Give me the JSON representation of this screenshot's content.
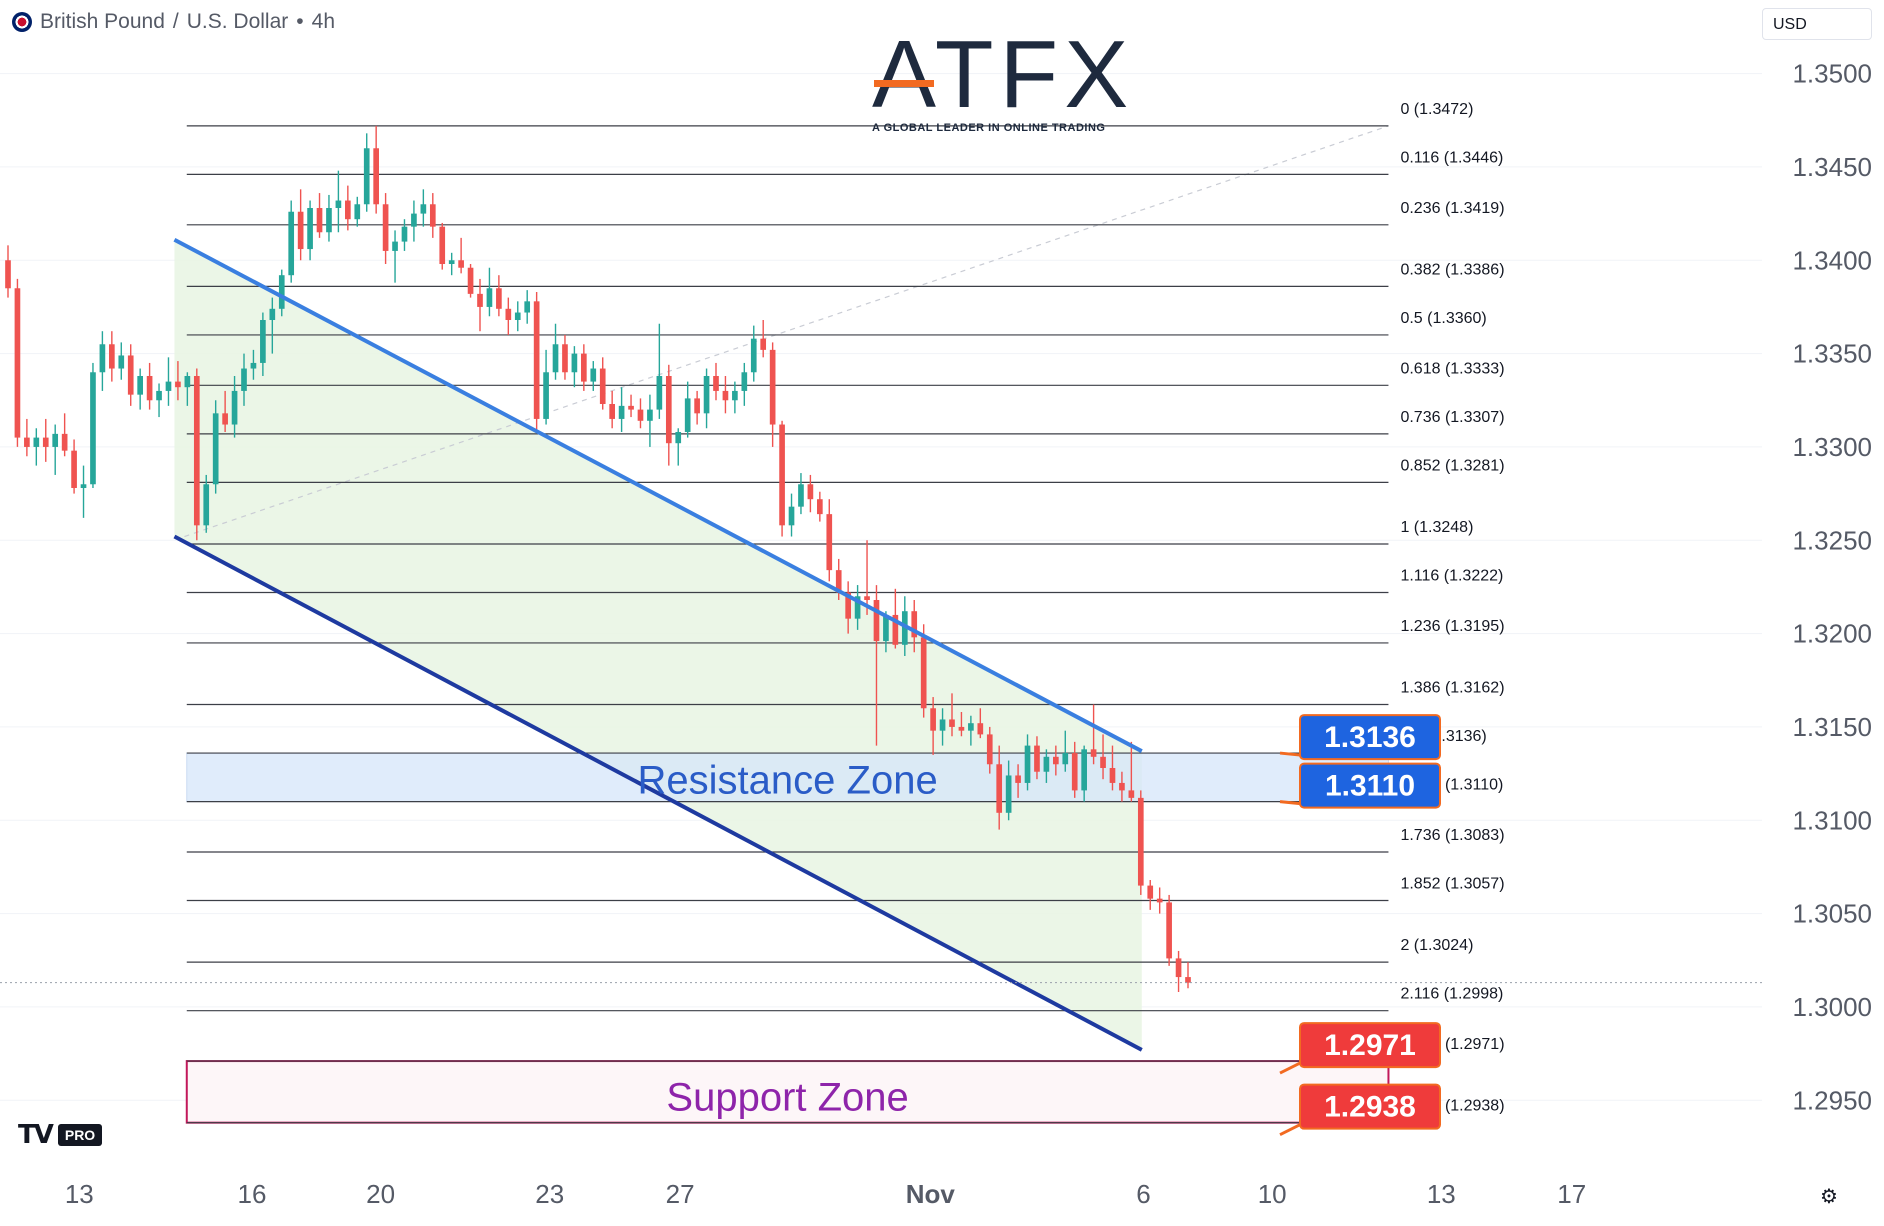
{
  "header": {
    "symbol": "British Pound",
    "quote": "U.S. Dollar",
    "interval": "4h",
    "currency_selector": "USD"
  },
  "logo": {
    "brand": "ATFX",
    "tagline": "A GLOBAL LEADER IN ONLINE TRADING"
  },
  "footer": {
    "brand": "TV",
    "pro_badge": "PRO"
  },
  "colors": {
    "bull": "#26a69a",
    "bear": "#ef5350",
    "channel_upper": "#3a7fe0",
    "channel_lower": "#1e3aa0",
    "channel_fill": "#e8f5e3",
    "resistance": "#d6e6fa",
    "support_border": "#c2185b",
    "blue_label": "#1e64e0",
    "red_label": "#ef3b3b"
  },
  "chart_data": {
    "type": "candlestick",
    "y_axis": {
      "range": [
        1.2918,
        1.3518
      ],
      "ticks": [
        "1.3500",
        "1.3450",
        "1.3400",
        "1.3350",
        "1.3300",
        "1.3250",
        "1.3200",
        "1.3150",
        "1.3100",
        "1.3050",
        "1.3000",
        "1.2950"
      ]
    },
    "x_axis": {
      "range": [
        0,
        100
      ],
      "ticks": [
        {
          "label": "13",
          "x": 4.5
        },
        {
          "label": "16",
          "x": 14.3
        },
        {
          "label": "20",
          "x": 21.6
        },
        {
          "label": "23",
          "x": 31.2
        },
        {
          "label": "27",
          "x": 38.6
        },
        {
          "label": "Nov",
          "x": 52.8
        },
        {
          "label": "6",
          "x": 64.9
        },
        {
          "label": "10",
          "x": 72.2
        },
        {
          "label": "13",
          "x": 81.8
        },
        {
          "label": "17",
          "x": 89.2
        }
      ]
    },
    "fibonacci": [
      {
        "label": "0 (1.3472)",
        "value": 1.3472
      },
      {
        "label": "0.116 (1.3446)",
        "value": 1.3446
      },
      {
        "label": "0.236 (1.3419)",
        "value": 1.3419
      },
      {
        "label": "0.382 (1.3386)",
        "value": 1.3386
      },
      {
        "label": "0.5 (1.3360)",
        "value": 1.336
      },
      {
        "label": "0.618 (1.3333)",
        "value": 1.3333
      },
      {
        "label": "0.736 (1.3307)",
        "value": 1.3307
      },
      {
        "label": "0.852 (1.3281)",
        "value": 1.3281
      },
      {
        "label": "1 (1.3248)",
        "value": 1.3248
      },
      {
        "label": "1.116 (1.3222)",
        "value": 1.3222
      },
      {
        "label": "1.236 (1.3195)",
        "value": 1.3195
      },
      {
        "label": "1.386 (1.3162)",
        "value": 1.3162
      },
      {
        "label": "1.5 (1.3136)",
        "value": 1.3136
      },
      {
        "label": "1.618 (1.3110)",
        "value": 1.311
      },
      {
        "label": "1.736 (1.3083)",
        "value": 1.3083
      },
      {
        "label": "1.852 (1.3057)",
        "value": 1.3057
      },
      {
        "label": "2 (1.3024)",
        "value": 1.3024
      },
      {
        "label": "2.116 (1.2998)",
        "value": 1.2998
      },
      {
        "label": "2.236 (1.2971)",
        "value": 1.2971
      },
      {
        "label": "2.386 (1.2938)",
        "value": 1.2938
      }
    ],
    "fib_x_range": [
      10.6,
      78.8
    ],
    "zones": [
      {
        "name": "Resistance Zone",
        "top": 1.3136,
        "bottom": 1.311,
        "x_range": [
          10.6,
          78.8
        ]
      },
      {
        "name": "Support Zone",
        "top": 1.2971,
        "bottom": 1.2938,
        "x_range": [
          10.6,
          78.8
        ]
      }
    ],
    "channel": {
      "upper": [
        [
          9.9,
          1.3411
        ],
        [
          64.8,
          1.3137
        ]
      ],
      "lower": [
        [
          9.9,
          1.3252
        ],
        [
          64.8,
          1.2977
        ]
      ]
    },
    "price_labels": [
      {
        "text": "1.3136",
        "value": 1.3136,
        "kind": "blue"
      },
      {
        "text": "1.3110",
        "value": 1.311,
        "kind": "blue"
      },
      {
        "text": "1.2971",
        "value": 1.2971,
        "kind": "red"
      },
      {
        "text": "1.2938",
        "value": 1.2938,
        "kind": "red"
      }
    ],
    "last_price": 1.3013,
    "candles": [
      [
        1.34,
        1.3408,
        1.338,
        1.3385
      ],
      [
        1.3385,
        1.339,
        1.33,
        1.3305
      ],
      [
        1.3305,
        1.3315,
        1.3295,
        1.33
      ],
      [
        1.33,
        1.331,
        1.329,
        1.3305
      ],
      [
        1.3305,
        1.3315,
        1.3292,
        1.33
      ],
      [
        1.33,
        1.3312,
        1.3285,
        1.3307
      ],
      [
        1.3307,
        1.3318,
        1.3295,
        1.3298
      ],
      [
        1.3298,
        1.3304,
        1.3275,
        1.3278
      ],
      [
        1.3278,
        1.329,
        1.3262,
        1.328
      ],
      [
        1.328,
        1.3345,
        1.3278,
        1.334
      ],
      [
        1.334,
        1.3362,
        1.333,
        1.3355
      ],
      [
        1.3355,
        1.3362,
        1.3335,
        1.3342
      ],
      [
        1.3342,
        1.3356,
        1.3336,
        1.3349
      ],
      [
        1.3349,
        1.3355,
        1.3322,
        1.3328
      ],
      [
        1.3328,
        1.3342,
        1.332,
        1.3338
      ],
      [
        1.3338,
        1.3345,
        1.332,
        1.3325
      ],
      [
        1.3325,
        1.3334,
        1.3316,
        1.333
      ],
      [
        1.333,
        1.3348,
        1.3322,
        1.3335
      ],
      [
        1.3335,
        1.3346,
        1.3325,
        1.3332
      ],
      [
        1.3332,
        1.334,
        1.3322,
        1.3338
      ],
      [
        1.3338,
        1.3342,
        1.325,
        1.3258
      ],
      [
        1.3258,
        1.3285,
        1.3254,
        1.328
      ],
      [
        1.328,
        1.3325,
        1.3275,
        1.3318
      ],
      [
        1.3318,
        1.333,
        1.3308,
        1.3312
      ],
      [
        1.3312,
        1.3338,
        1.3305,
        1.333
      ],
      [
        1.333,
        1.335,
        1.3322,
        1.3342
      ],
      [
        1.3342,
        1.3352,
        1.3336,
        1.3345
      ],
      [
        1.3345,
        1.3372,
        1.3338,
        1.3368
      ],
      [
        1.3368,
        1.338,
        1.335,
        1.3374
      ],
      [
        1.3374,
        1.3395,
        1.337,
        1.3392
      ],
      [
        1.3392,
        1.3432,
        1.3388,
        1.3426
      ],
      [
        1.3426,
        1.3438,
        1.34,
        1.3406
      ],
      [
        1.3406,
        1.3432,
        1.34,
        1.3428
      ],
      [
        1.3428,
        1.3436,
        1.3412,
        1.3415
      ],
      [
        1.3415,
        1.3435,
        1.341,
        1.3428
      ],
      [
        1.3428,
        1.3448,
        1.3415,
        1.3432
      ],
      [
        1.3432,
        1.344,
        1.3416,
        1.3422
      ],
      [
        1.3422,
        1.3434,
        1.3418,
        1.343
      ],
      [
        1.343,
        1.3468,
        1.3426,
        1.346
      ],
      [
        1.346,
        1.3472,
        1.3425,
        1.343
      ],
      [
        1.343,
        1.3436,
        1.3398,
        1.3405
      ],
      [
        1.3405,
        1.3416,
        1.3388,
        1.341
      ],
      [
        1.341,
        1.3422,
        1.3405,
        1.3418
      ],
      [
        1.3418,
        1.3432,
        1.341,
        1.3425
      ],
      [
        1.3425,
        1.3438,
        1.3418,
        1.343
      ],
      [
        1.343,
        1.3436,
        1.3412,
        1.3418
      ],
      [
        1.3418,
        1.342,
        1.3395,
        1.3398
      ],
      [
        1.3398,
        1.3404,
        1.3392,
        1.34
      ],
      [
        1.34,
        1.3412,
        1.3393,
        1.3396
      ],
      [
        1.3396,
        1.3398,
        1.338,
        1.3382
      ],
      [
        1.3382,
        1.339,
        1.3362,
        1.3375
      ],
      [
        1.3375,
        1.3396,
        1.337,
        1.3385
      ],
      [
        1.3385,
        1.3392,
        1.337,
        1.3374
      ],
      [
        1.3374,
        1.338,
        1.336,
        1.3368
      ],
      [
        1.3368,
        1.3378,
        1.3362,
        1.3372
      ],
      [
        1.3372,
        1.3384,
        1.3366,
        1.3378
      ],
      [
        1.3378,
        1.3383,
        1.3308,
        1.3315
      ],
      [
        1.3315,
        1.3352,
        1.3312,
        1.334
      ],
      [
        1.334,
        1.3366,
        1.3336,
        1.3355
      ],
      [
        1.3355,
        1.336,
        1.3336,
        1.334
      ],
      [
        1.334,
        1.3354,
        1.3332,
        1.335
      ],
      [
        1.335,
        1.3355,
        1.333,
        1.3335
      ],
      [
        1.3335,
        1.3346,
        1.333,
        1.3342
      ],
      [
        1.3342,
        1.3348,
        1.332,
        1.3323
      ],
      [
        1.3323,
        1.333,
        1.331,
        1.3315
      ],
      [
        1.3315,
        1.3332,
        1.3308,
        1.3322
      ],
      [
        1.3322,
        1.3328,
        1.3316,
        1.332
      ],
      [
        1.332,
        1.3326,
        1.331,
        1.3314
      ],
      [
        1.3314,
        1.3328,
        1.33,
        1.332
      ],
      [
        1.332,
        1.3366,
        1.3315,
        1.3338
      ],
      [
        1.3338,
        1.3344,
        1.329,
        1.3302
      ],
      [
        1.3302,
        1.331,
        1.329,
        1.3308
      ],
      [
        1.3308,
        1.3335,
        1.3305,
        1.3326
      ],
      [
        1.3326,
        1.333,
        1.3312,
        1.3318
      ],
      [
        1.3318,
        1.3342,
        1.331,
        1.3338
      ],
      [
        1.3338,
        1.3345,
        1.3325,
        1.333
      ],
      [
        1.333,
        1.3338,
        1.3318,
        1.3325
      ],
      [
        1.3325,
        1.3335,
        1.3318,
        1.333
      ],
      [
        1.333,
        1.3345,
        1.3322,
        1.334
      ],
      [
        1.334,
        1.3365,
        1.3335,
        1.3358
      ],
      [
        1.3358,
        1.3368,
        1.3348,
        1.3352
      ],
      [
        1.3352,
        1.3356,
        1.33,
        1.3312
      ],
      [
        1.3312,
        1.3314,
        1.3252,
        1.3258
      ],
      [
        1.3258,
        1.3275,
        1.3252,
        1.3268
      ],
      [
        1.3268,
        1.3286,
        1.3264,
        1.328
      ],
      [
        1.328,
        1.3285,
        1.3265,
        1.3272
      ],
      [
        1.3272,
        1.3276,
        1.326,
        1.3264
      ],
      [
        1.3264,
        1.3272,
        1.3228,
        1.3234
      ],
      [
        1.3234,
        1.324,
        1.3218,
        1.3222
      ],
      [
        1.3222,
        1.3228,
        1.32,
        1.3208
      ],
      [
        1.3208,
        1.3226,
        1.3202,
        1.322
      ],
      [
        1.322,
        1.325,
        1.321,
        1.3218
      ],
      [
        1.3218,
        1.3226,
        1.314,
        1.3196
      ],
      [
        1.3196,
        1.3212,
        1.319,
        1.321
      ],
      [
        1.321,
        1.3224,
        1.3192,
        1.3194
      ],
      [
        1.3194,
        1.322,
        1.3188,
        1.3212
      ],
      [
        1.3212,
        1.3218,
        1.319,
        1.3198
      ],
      [
        1.3198,
        1.3205,
        1.3155,
        1.316
      ],
      [
        1.316,
        1.3166,
        1.3135,
        1.3148
      ],
      [
        1.3148,
        1.316,
        1.314,
        1.3154
      ],
      [
        1.3154,
        1.3168,
        1.3145,
        1.315
      ],
      [
        1.315,
        1.3158,
        1.3145,
        1.3148
      ],
      [
        1.3148,
        1.3156,
        1.314,
        1.3152
      ],
      [
        1.3152,
        1.316,
        1.3144,
        1.3146
      ],
      [
        1.3146,
        1.315,
        1.3125,
        1.313
      ],
      [
        1.313,
        1.314,
        1.3095,
        1.3104
      ],
      [
        1.3104,
        1.3132,
        1.31,
        1.3124
      ],
      [
        1.3124,
        1.313,
        1.3112,
        1.312
      ],
      [
        1.312,
        1.3146,
        1.3116,
        1.314
      ],
      [
        1.314,
        1.3145,
        1.3122,
        1.3126
      ],
      [
        1.3126,
        1.3138,
        1.312,
        1.3134
      ],
      [
        1.3134,
        1.314,
        1.3124,
        1.313
      ],
      [
        1.313,
        1.3148,
        1.3126,
        1.3136
      ],
      [
        1.3136,
        1.3142,
        1.3112,
        1.3116
      ],
      [
        1.3116,
        1.314,
        1.311,
        1.3138
      ],
      [
        1.3138,
        1.3162,
        1.313,
        1.3134
      ],
      [
        1.3134,
        1.3146,
        1.3122,
        1.3128
      ],
      [
        1.3128,
        1.314,
        1.3116,
        1.312
      ],
      [
        1.312,
        1.3126,
        1.311,
        1.3116
      ],
      [
        1.3116,
        1.3142,
        1.311,
        1.3112
      ],
      [
        1.3112,
        1.3116,
        1.306,
        1.3065
      ],
      [
        1.3065,
        1.3068,
        1.3052,
        1.3058
      ],
      [
        1.3058,
        1.3064,
        1.305,
        1.3056
      ],
      [
        1.3056,
        1.306,
        1.3022,
        1.3026
      ],
      [
        1.3026,
        1.303,
        1.3008,
        1.3016
      ],
      [
        1.3016,
        1.3024,
        1.301,
        1.3013
      ]
    ]
  }
}
